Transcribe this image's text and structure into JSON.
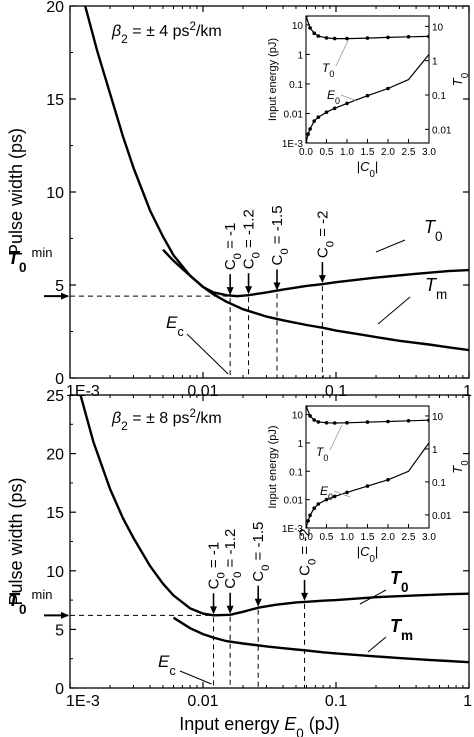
{
  "chart_data": [
    {
      "type": "line",
      "xscale": "log",
      "xlim": [
        0.001,
        1
      ],
      "ylim": [
        0,
        20
      ],
      "xticks": [
        0.001,
        0.01,
        0.1,
        1
      ],
      "xtick_labels": [
        "1E-3",
        "0.01",
        "0.1",
        "1"
      ],
      "yticks": [
        0,
        5,
        10,
        15,
        20
      ],
      "ytick_labels": [
        "0",
        "5",
        "10",
        "15",
        "20"
      ],
      "xlabel": "",
      "ylabel": "Pulse width (ps)",
      "annotation": "β2 = ± 4 ps²/km",
      "T0min_label": {
        "main": "T0",
        "sup": "min"
      },
      "T0min_value": 4.4,
      "series": [
        {
          "name": "T0",
          "x": [
            0.0013,
            0.0016,
            0.002,
            0.0025,
            0.003,
            0.004,
            0.005,
            0.006,
            0.008,
            0.01,
            0.012,
            0.015,
            0.018,
            0.022,
            0.03,
            0.04,
            0.06,
            0.08,
            0.1,
            0.2,
            0.4,
            0.7,
            1.0
          ],
          "y": [
            20,
            17.6,
            15.3,
            13.0,
            11.3,
            9.0,
            7.6,
            6.6,
            5.5,
            4.9,
            4.6,
            4.45,
            4.4,
            4.45,
            4.6,
            4.75,
            4.95,
            5.05,
            5.15,
            5.4,
            5.6,
            5.75,
            5.8
          ]
        },
        {
          "name": "Tm",
          "x": [
            0.005,
            0.006,
            0.008,
            0.01,
            0.012,
            0.015,
            0.02,
            0.03,
            0.04,
            0.06,
            0.08,
            0.1,
            0.15,
            0.2,
            0.3,
            0.5,
            0.7,
            1.0
          ],
          "y": [
            6.9,
            6.3,
            5.5,
            4.9,
            4.5,
            4.1,
            3.7,
            3.3,
            3.1,
            2.85,
            2.7,
            2.55,
            2.35,
            2.2,
            2.0,
            1.8,
            1.65,
            1.5
          ]
        }
      ],
      "curve_labels": [
        {
          "main": "T",
          "sub": "0"
        },
        {
          "main": "T",
          "sub": "m"
        }
      ],
      "ec_label": {
        "main": "E",
        "sub": "c"
      },
      "markers": [
        {
          "label": "C",
          "sub": "0",
          "value": " = -1",
          "x": 0.016,
          "y": 4.4
        },
        {
          "label": "C",
          "sub": "0",
          "value": " = -1.2",
          "x": 0.022,
          "y": 4.45
        },
        {
          "label": "C",
          "sub": "0",
          "value": " = -1.5",
          "x": 0.036,
          "y": 4.65
        },
        {
          "label": "C",
          "sub": "0",
          "value": " = -2",
          "x": 0.079,
          "y": 5.05
        }
      ],
      "inset": {
        "xlim": [
          0.0,
          3.0
        ],
        "xticks": [
          "0.0",
          "0.5",
          "1.0",
          "1.5",
          "2.0",
          "2.5",
          "3.0"
        ],
        "xlabel": "|C0|",
        "ylabel_left": "Input energy (pJ)",
        "ylabel_right": "T0",
        "left_ticks": [
          "10",
          "1",
          "0.1",
          "0.01",
          "1E-3"
        ],
        "right_ticks": [
          "10",
          "1",
          "0.1",
          "0.01"
        ],
        "label_T0": "T0",
        "label_E0": "E0",
        "series": [
          {
            "name": "T0 (pulse width)",
            "x": [
              0.0,
              0.1,
              0.2,
              0.3,
              0.5,
              0.7,
              1.0,
              1.5,
              2.0,
              2.5,
              3.0
            ],
            "y": [
              20,
              9,
              6.3,
              5.2,
              4.6,
              4.4,
              4.4,
              4.55,
              4.75,
              4.95,
              5.1
            ]
          },
          {
            "name": "E0 (input energy)",
            "x": [
              0.0,
              0.05,
              0.1,
              0.2,
              0.3,
              0.5,
              0.7,
              1.0,
              1.5,
              2.0,
              2.5,
              3.0
            ],
            "y": [
              0.001,
              0.002,
              0.003,
              0.0055,
              0.0075,
              0.011,
              0.015,
              0.022,
              0.04,
              0.07,
              0.14,
              1.0
            ]
          }
        ]
      }
    },
    {
      "type": "line",
      "xscale": "log",
      "xlim": [
        0.001,
        1
      ],
      "ylim": [
        0,
        25
      ],
      "xticks": [
        0.001,
        0.01,
        0.1,
        1
      ],
      "xtick_labels": [
        "1E-3",
        "0.01",
        "0.1",
        "1"
      ],
      "yticks": [
        0,
        5,
        10,
        15,
        20,
        25
      ],
      "ytick_labels": [
        "0",
        "5",
        "10",
        "15",
        "20",
        "25"
      ],
      "xlabel": "Input energy E0 (pJ)",
      "xlabel_parts": {
        "pre": "Input energy ",
        "main": "E",
        "sub": "0",
        "post": " (pJ)"
      },
      "ylabel": "Pulse width (ps)",
      "annotation": "β2 = ± 8 ps²/km",
      "T0min_label": {
        "main": "T0",
        "sup": "min"
      },
      "T0min_value": 6.2,
      "series": [
        {
          "name": "T0",
          "x": [
            0.0012,
            0.0015,
            0.002,
            0.0025,
            0.003,
            0.004,
            0.005,
            0.006,
            0.008,
            0.01,
            0.012,
            0.016,
            0.02,
            0.026,
            0.035,
            0.05,
            0.058,
            0.08,
            0.1,
            0.2,
            0.4,
            0.7,
            1.0
          ],
          "y": [
            25,
            21,
            17,
            14.5,
            12.8,
            10.4,
            8.9,
            7.9,
            6.8,
            6.35,
            6.2,
            6.25,
            6.5,
            6.85,
            7.1,
            7.3,
            7.35,
            7.45,
            7.5,
            7.75,
            7.9,
            8.0,
            8.05
          ]
        },
        {
          "name": "Tm",
          "x": [
            0.006,
            0.008,
            0.01,
            0.012,
            0.015,
            0.02,
            0.03,
            0.04,
            0.06,
            0.08,
            0.1,
            0.15,
            0.2,
            0.3,
            0.5,
            0.7,
            1.0
          ],
          "y": [
            6.0,
            5.1,
            4.6,
            4.3,
            4.0,
            3.8,
            3.55,
            3.4,
            3.2,
            3.05,
            2.95,
            2.8,
            2.7,
            2.55,
            2.4,
            2.3,
            2.2
          ]
        }
      ],
      "curve_labels": [
        {
          "main": "T",
          "sub": "0"
        },
        {
          "main": "T",
          "sub": "m"
        }
      ],
      "ec_label": {
        "main": "E",
        "sub": "c"
      },
      "markers": [
        {
          "label": "C",
          "sub": "0",
          "value": " = -1",
          "x": 0.012,
          "y": 6.2
        },
        {
          "label": "C",
          "sub": "0",
          "value": " = -1.2",
          "x": 0.016,
          "y": 6.25
        },
        {
          "label": "C",
          "sub": "0",
          "value": " = -1.5",
          "x": 0.026,
          "y": 6.85
        },
        {
          "label": "C",
          "sub": "0",
          "value": " = -2",
          "x": 0.058,
          "y": 7.35
        }
      ],
      "inset": {
        "xlim": [
          0.0,
          3.0
        ],
        "xticks": [
          "0.0",
          "0.5",
          "1.0",
          "1.5",
          "2.0",
          "2.5",
          "3.0"
        ],
        "xlabel": "|C0|",
        "ylabel_left": "Input energy (pJ)",
        "ylabel_right": "T0",
        "left_ticks": [
          "10",
          "1",
          "0.1",
          "0.01",
          "1E-3"
        ],
        "right_ticks": [
          "10",
          "1",
          "0.1",
          "0.01"
        ],
        "label_T0": "T0",
        "label_E0": "E0",
        "series": [
          {
            "name": "T0 (pulse width)",
            "x": [
              0.0,
              0.1,
              0.2,
              0.3,
              0.5,
              0.7,
              1.0,
              1.5,
              2.0,
              2.5,
              3.0
            ],
            "y": [
              20,
              10,
              7.5,
              6.6,
              6.2,
              6.1,
              6.2,
              6.5,
              6.8,
              7.1,
              7.4
            ]
          },
          {
            "name": "E0 (input energy)",
            "x": [
              0.0,
              0.05,
              0.1,
              0.2,
              0.3,
              0.5,
              0.7,
              1.0,
              1.5,
              2.0,
              2.5,
              3.0
            ],
            "y": [
              0.001,
              0.0018,
              0.0028,
              0.005,
              0.007,
              0.01,
              0.013,
              0.018,
              0.03,
              0.05,
              0.1,
              1.0
            ]
          }
        ]
      }
    }
  ]
}
